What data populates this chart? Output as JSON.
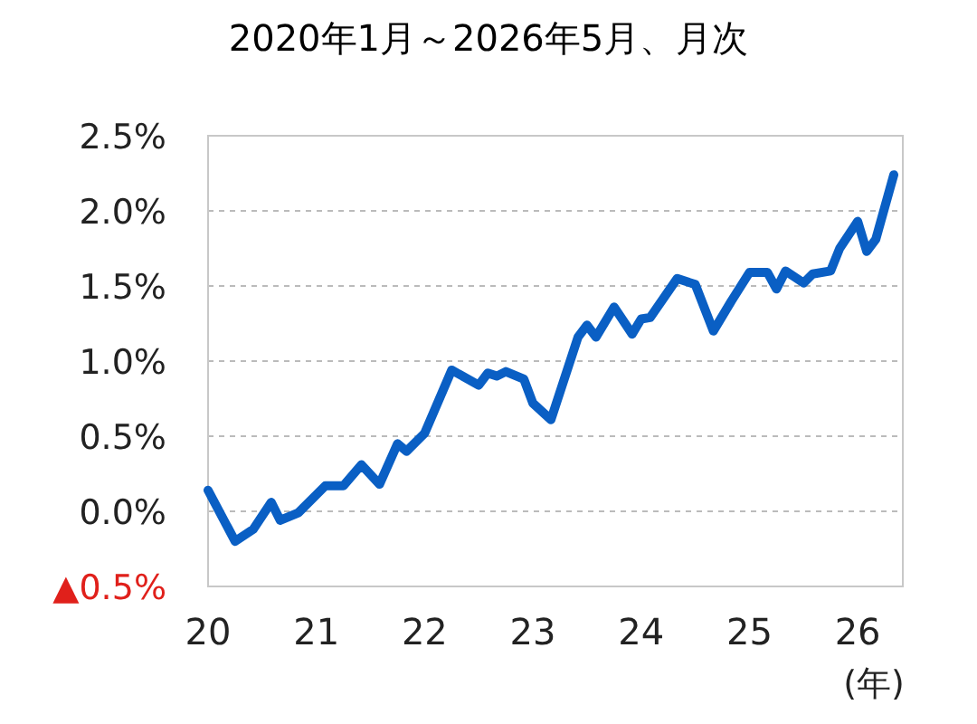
{
  "chart_data": {
    "type": "line",
    "title": "2020年1月～2026年5月、月次",
    "xlabel": "(年)",
    "x": [
      "2020-01",
      "2020-04",
      "2020-06",
      "2020-08",
      "2020-09",
      "2020-11",
      "2021-02",
      "2021-04",
      "2021-06",
      "2021-08",
      "2021-10",
      "2021-11",
      "2022-01",
      "2022-04",
      "2022-07",
      "2022-08",
      "2022-09",
      "2022-10",
      "2022-12",
      "2023-01",
      "2023-03",
      "2023-06",
      "2023-07",
      "2023-08",
      "2023-10",
      "2023-12",
      "2024-01",
      "2024-02",
      "2024-05",
      "2024-07",
      "2024-09",
      "2024-11",
      "2025-01",
      "2025-03",
      "2025-04",
      "2025-05",
      "2025-07",
      "2025-08",
      "2025-10",
      "2025-11",
      "2026-01",
      "2026-02",
      "2026-03",
      "2026-05"
    ],
    "series": [
      {
        "color": "#0a5fc4",
        "values": [
          0.14,
          -0.2,
          -0.12,
          0.06,
          -0.06,
          -0.01,
          0.17,
          0.17,
          0.31,
          0.18,
          0.45,
          0.4,
          0.52,
          0.94,
          0.84,
          0.92,
          0.9,
          0.93,
          0.88,
          0.72,
          0.61,
          1.16,
          1.24,
          1.16,
          1.36,
          1.18,
          1.28,
          1.29,
          1.55,
          1.51,
          1.2,
          1.4,
          1.59,
          1.59,
          1.48,
          1.6,
          1.52,
          1.58,
          1.6,
          1.75,
          1.93,
          1.73,
          1.81,
          2.24
        ]
      }
    ],
    "xlim": [
      "2020-01",
      "2026-06"
    ],
    "xticks": [
      {
        "value": "2020-01",
        "label": "20"
      },
      {
        "value": "2021-01",
        "label": "21"
      },
      {
        "value": "2022-01",
        "label": "22"
      },
      {
        "value": "2023-01",
        "label": "23"
      },
      {
        "value": "2024-01",
        "label": "24"
      },
      {
        "value": "2025-01",
        "label": "25"
      },
      {
        "value": "2026-01",
        "label": "26"
      }
    ],
    "ylim": [
      -0.5,
      2.5
    ],
    "yticks": [
      {
        "value": -0.5,
        "label": "▲0.5%"
      },
      {
        "value": 0,
        "label": "0.0%"
      },
      {
        "value": 0.5,
        "label": "0.5%"
      },
      {
        "value": 1,
        "label": "1.0%"
      },
      {
        "value": 1.5,
        "label": "1.5%"
      },
      {
        "value": 2,
        "label": "2.0%"
      },
      {
        "value": 2.5,
        "label": "2.5%"
      }
    ],
    "grid": "y",
    "marker": "none",
    "line_style": "solid"
  }
}
